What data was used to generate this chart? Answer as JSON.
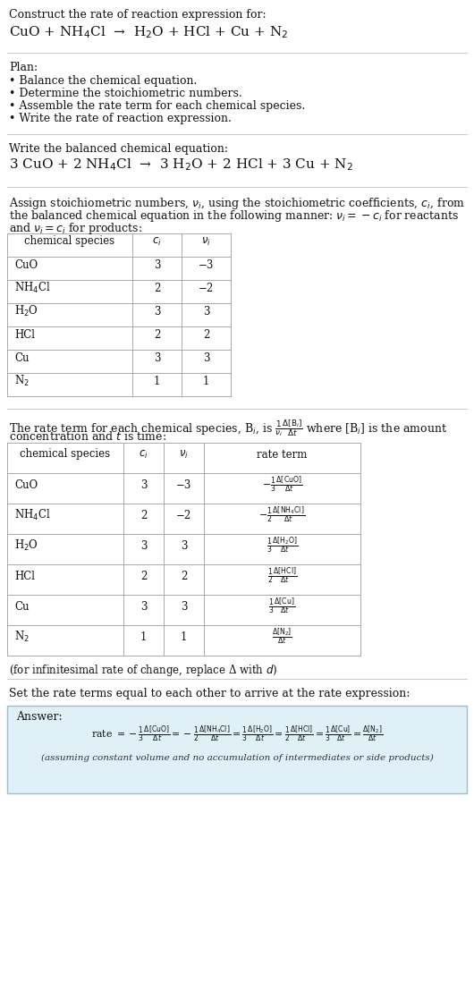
{
  "bg_color": "#ffffff",
  "title_line1": "Construct the rate of reaction expression for:",
  "equation_unbalanced": "CuO + NH$_4$Cl  →  H$_2$O + HCl + Cu + N$_2$",
  "plan_header": "Plan:",
  "plan_items": [
    "• Balance the chemical equation.",
    "• Determine the stoichiometric numbers.",
    "• Assemble the rate term for each chemical species.",
    "• Write the rate of reaction expression."
  ],
  "balanced_header": "Write the balanced chemical equation:",
  "equation_balanced": "3 CuO + 2 NH$_4$Cl  →  3 H$_2$O + 2 HCl + 3 Cu + N$_2$",
  "stoich_header1": "Assign stoichiometric numbers, $\\nu_i$, using the stoichiometric coefficients, $c_i$, from",
  "stoich_header2": "the balanced chemical equation in the following manner: $\\nu_i = -c_i$ for reactants",
  "stoich_header3": "and $\\nu_i = c_i$ for products:",
  "table1_cols": [
    "chemical species",
    "$c_i$",
    "$\\nu_i$"
  ],
  "table1_data": [
    [
      "CuO",
      "3",
      "−3"
    ],
    [
      "NH$_4$Cl",
      "2",
      "−2"
    ],
    [
      "H$_2$O",
      "3",
      "3"
    ],
    [
      "HCl",
      "2",
      "2"
    ],
    [
      "Cu",
      "3",
      "3"
    ],
    [
      "N$_2$",
      "1",
      "1"
    ]
  ],
  "rate_header1": "The rate term for each chemical species, B$_i$, is $\\frac{1}{\\nu_i}\\frac{\\Delta[\\mathrm{B}_i]}{\\Delta t}$ where [B$_i$] is the amount",
  "rate_header2": "concentration and $t$ is time:",
  "table2_cols": [
    "chemical species",
    "$c_i$",
    "$\\nu_i$",
    "rate term"
  ],
  "table2_data": [
    [
      "CuO",
      "3",
      "−3",
      "$-\\frac{1}{3}\\frac{\\Delta[\\mathrm{CuO}]}{\\Delta t}$"
    ],
    [
      "NH$_4$Cl",
      "2",
      "−2",
      "$-\\frac{1}{2}\\frac{\\Delta[\\mathrm{NH_4Cl}]}{\\Delta t}$"
    ],
    [
      "H$_2$O",
      "3",
      "3",
      "$\\frac{1}{3}\\frac{\\Delta[\\mathrm{H_2O}]}{\\Delta t}$"
    ],
    [
      "HCl",
      "2",
      "2",
      "$\\frac{1}{2}\\frac{\\Delta[\\mathrm{HCl}]}{\\Delta t}$"
    ],
    [
      "Cu",
      "3",
      "3",
      "$\\frac{1}{3}\\frac{\\Delta[\\mathrm{Cu}]}{\\Delta t}$"
    ],
    [
      "N$_2$",
      "1",
      "1",
      "$\\frac{\\Delta[\\mathrm{N_2}]}{\\Delta t}$"
    ]
  ],
  "infinitesimal_note": "(for infinitesimal rate of change, replace Δ with $d$)",
  "set_equal_text": "Set the rate terms equal to each other to arrive at the rate expression:",
  "answer_label": "Answer:",
  "answer_box_color": "#dff0f7",
  "answer_box_border": "#9bbfcc",
  "answer_rate_expr": "rate $= -\\frac{1}{3}\\frac{\\Delta[\\mathrm{CuO}]}{\\Delta t} = -\\frac{1}{2}\\frac{\\Delta[\\mathrm{NH_4Cl}]}{\\Delta t} = \\frac{1}{3}\\frac{\\Delta[\\mathrm{H_2O}]}{\\Delta t} = \\frac{1}{2}\\frac{\\Delta[\\mathrm{HCl}]}{\\Delta t} = \\frac{1}{3}\\frac{\\Delta[\\mathrm{Cu}]}{\\Delta t} = \\frac{\\Delta[\\mathrm{N_2}]}{\\Delta t}$",
  "answer_note": "(assuming constant volume and no accumulation of intermediates or side products)"
}
